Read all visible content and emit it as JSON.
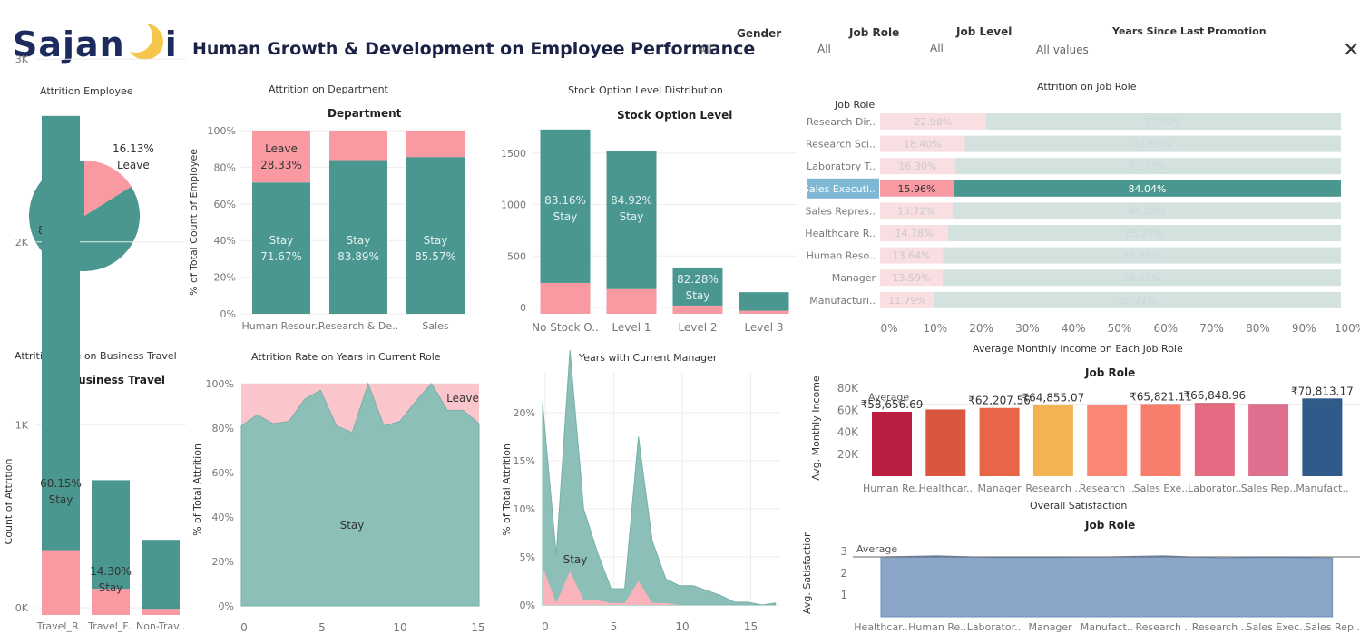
{
  "logo": {
    "text": "Sajan",
    "suffix": "i"
  },
  "title": "Human Growth & Development on Employee Performance",
  "filters": [
    {
      "label": "Gender",
      "value": "All"
    },
    {
      "label": "Job Role",
      "value": "All"
    },
    {
      "label": "Job Level",
      "value": "All"
    },
    {
      "label": "Years Since Last Promotion",
      "value": "All values"
    }
  ],
  "colors": {
    "stay": "#4a978f",
    "leave": "#f99aa3",
    "stay_light": "#d3e1df",
    "leave_light": "#f9dfe1"
  },
  "panels": {
    "p1": "Attrition Employee",
    "p2": "Attrition on Department",
    "p3": "Stock Option Level Distribution",
    "p4": "Attrition on Job Role",
    "p5": "Attrition Rate on Business Travel",
    "p6": "Attrition Rate on Years in Current Role",
    "p7": "Years with Current Manager",
    "p8": "Average Monthly Income on Each Job Role",
    "p9": "Overall Satisfaction"
  },
  "chart_data": [
    {
      "id": "attrition_pie",
      "type": "pie",
      "slices": [
        {
          "name": "Leave",
          "value": 16.13,
          "label": "16.13%"
        },
        {
          "name": "Stay",
          "value": 83.87,
          "label": "83.87%"
        }
      ]
    },
    {
      "id": "department",
      "type": "bar",
      "subtitle": "Department",
      "ylabel": "% of Total Count of Employee",
      "categories": [
        "Human Resour..",
        "Research & De..",
        "Sales"
      ],
      "yticks": [
        "0%",
        "20%",
        "40%",
        "60%",
        "80%",
        "100%"
      ],
      "series": [
        {
          "name": "Stay",
          "values": [
            71.67,
            83.89,
            85.57
          ],
          "labels": [
            "71.67%",
            "83.89%",
            "85.57%"
          ]
        },
        {
          "name": "Leave",
          "values": [
            28.33,
            16.11,
            14.43
          ],
          "labels": [
            "28.33%",
            "",
            ""
          ]
        }
      ]
    },
    {
      "id": "stock_option",
      "type": "bar",
      "subtitle": "Stock Option Level",
      "categories": [
        "No Stock O..",
        "Level 1",
        "Level 2",
        "Level 3"
      ],
      "yticks": [
        "0",
        "500",
        "1000",
        "1500"
      ],
      "ylim": [
        0,
        1800
      ],
      "series": [
        {
          "name": "Stay",
          "values": [
            1490,
            1340,
            370,
            180
          ],
          "labels": [
            "83.16%",
            "84.92%",
            "82.28%",
            ""
          ]
        },
        {
          "name": "Leave",
          "values": [
            300,
            240,
            80,
            30
          ]
        }
      ]
    },
    {
      "id": "job_role",
      "type": "bar",
      "subtitle": "Job Role",
      "categories": [
        "Research Dir..",
        "Research Sci..",
        "Laboratory T..",
        "Sales Executi..",
        "Sales Repres..",
        "Healthcare R..",
        "Human Reso..",
        "Manager",
        "Manufacturi.."
      ],
      "leave": [
        22.98,
        18.4,
        16.3,
        15.96,
        15.72,
        14.78,
        13.64,
        13.59,
        11.79
      ],
      "leave_labels": [
        "22.98%",
        "18.40%",
        "16.30%",
        "15.96%",
        "15.72%",
        "14.78%",
        "13.64%",
        "13.59%",
        "11.79%"
      ],
      "stay_labels": [
        "77.02%",
        "81.60%",
        "83.70%",
        "84.04%",
        "84.28%",
        "85.22%",
        "86.36%",
        "86.41%",
        "88.21%"
      ],
      "highlight": 3,
      "xticks": [
        "0%",
        "10%",
        "20%",
        "30%",
        "40%",
        "50%",
        "60%",
        "70%",
        "80%",
        "90%",
        "100%"
      ]
    },
    {
      "id": "business_travel",
      "type": "bar",
      "subtitle": "Business Travel",
      "ylabel": "Count of Attrition",
      "categories": [
        "Travel_R..",
        "Travel_F..",
        "Non-Trav.."
      ],
      "yticks": [
        "0K",
        "1K",
        "2K",
        "3K"
      ],
      "ylim": [
        0,
        3000
      ],
      "series": [
        {
          "name": "Stay",
          "values": [
            2520,
            630,
            400
          ],
          "labels": [
            "60.15%",
            "14.30%",
            ""
          ]
        },
        {
          "name": "Leave",
          "values": [
            420,
            170,
            40
          ]
        }
      ]
    },
    {
      "id": "years_current_role",
      "type": "area",
      "ylabel": "% of Total Attrition",
      "x": [
        0,
        1,
        2,
        3,
        4,
        5,
        6,
        7,
        8,
        9,
        10,
        11,
        12,
        13,
        14,
        15
      ],
      "stay": [
        81,
        86,
        82,
        83,
        93,
        97,
        81,
        78,
        100,
        81,
        83,
        92,
        100,
        88,
        88,
        82
      ],
      "labels": {
        "stay": "Stay",
        "leave": "Leave"
      },
      "xticks": [
        "0",
        "5",
        "10",
        "15"
      ],
      "yticks": [
        "0%",
        "20%",
        "40%",
        "60%",
        "80%",
        "100%"
      ]
    },
    {
      "id": "years_current_manager",
      "type": "area",
      "ylabel": "% of Total Attrition",
      "x": [
        0,
        1,
        2,
        3,
        4,
        5,
        6,
        7,
        8,
        9,
        10,
        11,
        12,
        13,
        14,
        15,
        16,
        17
      ],
      "stay": [
        17,
        5,
        23,
        9.5,
        5,
        1.5,
        1.5,
        15,
        6.5,
        2.5,
        2,
        2,
        1.5,
        1,
        0.3,
        0.3,
        0,
        0.2
      ],
      "leave": [
        4,
        0.2,
        3.5,
        0.5,
        0.5,
        0.2,
        0.2,
        2.5,
        0.2,
        0.2,
        0,
        0,
        0,
        0,
        0,
        0,
        0,
        0
      ],
      "labels": {
        "stay": "Stay"
      },
      "xticks": [
        "0",
        "5",
        "10",
        "15"
      ],
      "yticks": [
        "0%",
        "5%",
        "10%",
        "15%",
        "20%"
      ]
    },
    {
      "id": "monthly_income",
      "type": "bar",
      "subtitle": "Job Role",
      "ylabel": "Avg. Monthly Income",
      "categories": [
        "Human Re..",
        "Healthcar..",
        "Manager",
        "Research ..",
        "Research ..",
        "Sales Exe..",
        "Laborator..",
        "Sales Rep..",
        "Manufact.."
      ],
      "values": [
        58656.69,
        60800,
        62207.56,
        64855.07,
        65300,
        65821.11,
        66848.96,
        66000,
        70813.17
      ],
      "labels": [
        "₹58,656.69",
        "",
        "₹62,207.56",
        "₹64,855.07",
        "",
        "₹65,821.11",
        "₹66,848.96",
        "",
        "₹70,813.17"
      ],
      "colors": [
        "#b91d40",
        "#d9573f",
        "#e86548",
        "#f4b353",
        "#fa8775",
        "#f67c6c",
        "#e56b82",
        "#de6f8e",
        "#2f5a8a"
      ],
      "average": 65000,
      "average_label": "Average",
      "yticks": [
        "20K",
        "40K",
        "60K",
        "80K"
      ],
      "ylim": [
        0,
        85000
      ]
    },
    {
      "id": "satisfaction",
      "type": "area",
      "subtitle": "Job Role",
      "ylabel": "Avg. Satisfaction",
      "categories": [
        "Healthcar..",
        "Human Re..",
        "Laborator..",
        "Manager",
        "Manufact..",
        "Research ..",
        "Research ..",
        "Sales Exec..",
        "Sales Rep.."
      ],
      "values": [
        2.75,
        2.8,
        2.72,
        2.72,
        2.75,
        2.8,
        2.7,
        2.72,
        2.7
      ],
      "average": 2.75,
      "average_label": "Average",
      "yticks": [
        "1",
        "2",
        "3"
      ],
      "ylim": [
        0,
        3.5
      ]
    }
  ]
}
